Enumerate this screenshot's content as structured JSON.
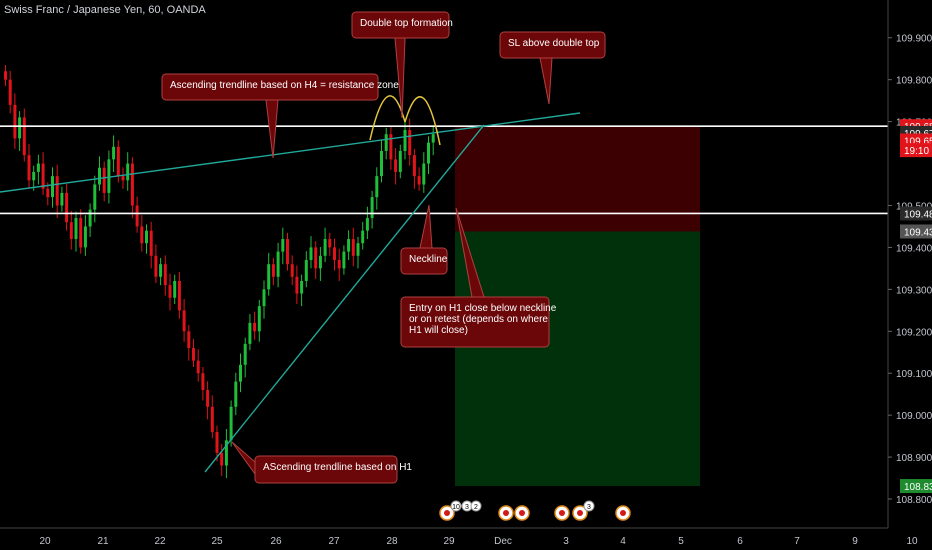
{
  "title": "Swiss Franc / Japanese Yen, 60, OANDA",
  "colors": {
    "background": "#000000",
    "up": "#1fbf3a",
    "down": "#e0141a",
    "trendline": "#21a89a",
    "level": "#ffffff",
    "short_zone": "#3d0002",
    "target_zone": "#00310a",
    "note_bg": "#6b0609",
    "arc": "#e4c53b"
  },
  "chart_data": {
    "type": "candlestick",
    "ylim": [
      108.75,
      109.99
    ],
    "y_ticks": [
      "109.900",
      "109.800",
      "109.700",
      "109.500",
      "109.400",
      "109.300",
      "109.200",
      "109.100",
      "109.000",
      "108.900",
      "108.800"
    ],
    "x_ticks": [
      "20",
      "21",
      "22",
      "25",
      "26",
      "27",
      "28",
      "29",
      "Dec",
      "3",
      "4",
      "5",
      "6",
      "7",
      "9",
      "10"
    ],
    "price_labels": [
      {
        "text": "109.689",
        "value": 109.689,
        "color": "#e0141a"
      },
      {
        "text": "109.673",
        "value": 109.673,
        "color": "#2a2a2a"
      },
      {
        "text": "109.655",
        "value": 109.655,
        "color": "#e0141a"
      },
      {
        "text": "19:10",
        "value": 109.632,
        "color": "#e0141a"
      },
      {
        "text": "109.481",
        "value": 109.481,
        "color": "#2a2a2a"
      },
      {
        "text": "109.438",
        "value": 109.438,
        "color": "#555555"
      },
      {
        "text": "108.831",
        "value": 108.831,
        "color": "#1e8b2e"
      }
    ],
    "levels": [
      109.689,
      109.481
    ],
    "position": {
      "entry": 109.438,
      "stop": 109.689,
      "target": 108.831
    },
    "close_series": [
      109.8,
      109.74,
      109.66,
      109.71,
      109.62,
      109.56,
      109.58,
      109.6,
      109.54,
      109.52,
      109.57,
      109.5,
      109.53,
      109.46,
      109.42,
      109.47,
      109.4,
      109.45,
      109.49,
      109.55,
      109.59,
      109.53,
      109.61,
      109.64,
      109.57,
      109.56,
      109.6,
      109.5,
      109.45,
      109.41,
      109.44,
      109.38,
      109.33,
      109.36,
      109.31,
      109.28,
      109.32,
      109.25,
      109.2,
      109.16,
      109.13,
      109.1,
      109.06,
      109.02,
      108.96,
      108.91,
      108.88,
      108.94,
      109.02,
      109.08,
      109.12,
      109.17,
      109.22,
      109.2,
      109.26,
      109.3,
      109.36,
      109.33,
      109.39,
      109.42,
      109.36,
      109.33,
      109.29,
      109.32,
      109.37,
      109.4,
      109.35,
      109.38,
      109.42,
      109.4,
      109.37,
      109.35,
      109.39,
      109.42,
      109.38,
      109.41,
      109.44,
      109.47,
      109.52,
      109.57,
      109.63,
      109.67,
      109.61,
      109.58,
      109.63,
      109.68,
      109.62,
      109.57,
      109.55,
      109.6,
      109.65,
      109.67
    ]
  },
  "annotations": {
    "double_top": "Double top formation",
    "sl": "SL above double top",
    "resistance": "Ascending trendline based on H4 = resistance zone",
    "neckline": "Neckline",
    "entry_line1": "Entry on H1 close below neckline",
    "entry_line2": "or on retest (depends on where",
    "entry_line3": "H1 will close)",
    "h1_trend": "AScending trendline based on H1"
  },
  "events": [
    "10",
    "3",
    "2",
    "3"
  ]
}
